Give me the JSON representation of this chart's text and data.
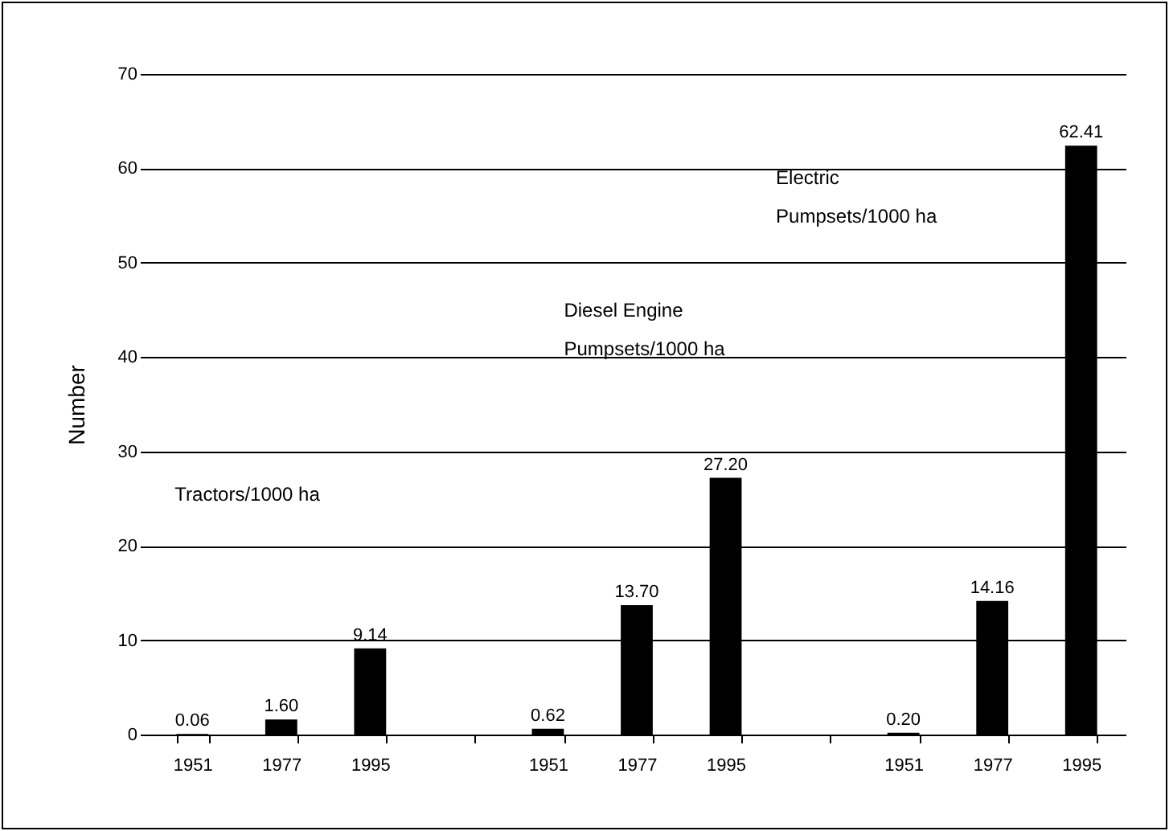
{
  "chart_data": {
    "type": "bar",
    "ylabel": "Number",
    "categories": [
      "1951",
      "1977",
      "1995",
      null,
      "1951",
      "1977",
      "1995",
      null,
      "1951",
      "1977",
      "1995"
    ],
    "values": [
      0.06,
      1.6,
      9.14,
      null,
      0.62,
      13.7,
      27.2,
      null,
      0.2,
      14.16,
      62.41
    ],
    "value_labels": [
      "0.06",
      "1.60",
      "9.14",
      null,
      "0.62",
      "13.70",
      "27.20",
      null,
      "0.20",
      "14.16",
      "62.41"
    ],
    "color": "#000000",
    "ylim": [
      0,
      70
    ],
    "yticks": [
      0,
      10,
      20,
      30,
      40,
      50,
      60,
      70
    ],
    "grid": "y",
    "annotations": [
      "Tractors/1000 ha",
      "Diesel Engine\nPumpsets/1000 ha",
      "Electric\nPumpsets/1000 ha"
    ]
  }
}
